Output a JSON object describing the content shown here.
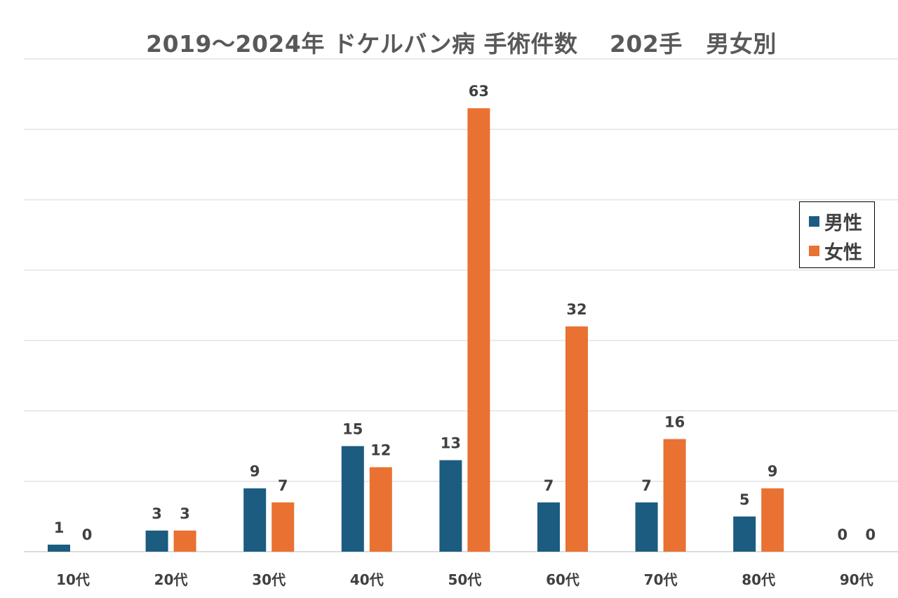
{
  "chart_data": {
    "type": "bar",
    "title": "2019～2024年 ドケルバン病 手術件数　 202手　男女別",
    "xlabel": "",
    "ylabel": "",
    "categories": [
      "10代",
      "20代",
      "30代",
      "40代",
      "50代",
      "60代",
      "70代",
      "80代",
      "90代"
    ],
    "series": [
      {
        "name": "男性",
        "color": "#1b5c80",
        "values": [
          1,
          3,
          9,
          15,
          13,
          7,
          7,
          5,
          0
        ]
      },
      {
        "name": "女性",
        "color": "#e97132",
        "values": [
          0,
          3,
          7,
          12,
          63,
          32,
          16,
          9,
          0
        ]
      }
    ],
    "ylim": [
      0,
      70
    ],
    "grid_step": 10,
    "grid": true,
    "legend_position": "right"
  }
}
